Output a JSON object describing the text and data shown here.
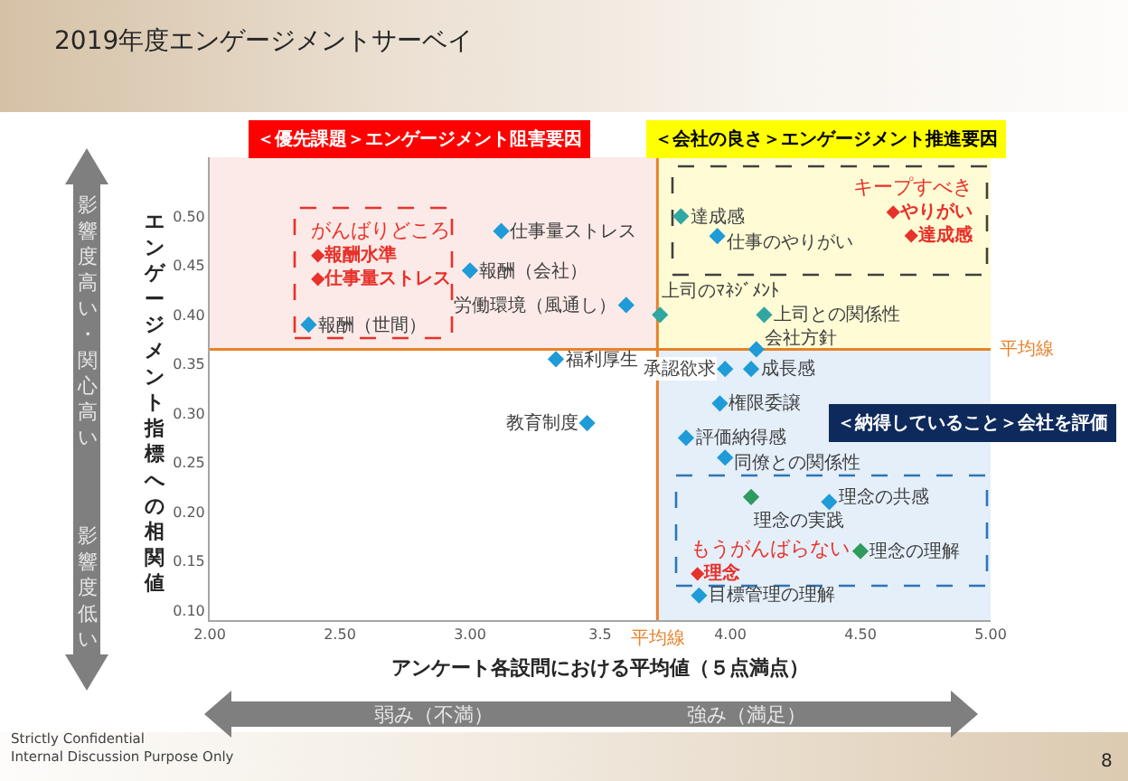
{
  "chart_data": {
    "type": "scatter",
    "title": "2019年度エンゲージメントサーベイ",
    "xlabel": "アンケート各設問における平均値（５点満点）",
    "ylabel": "エンゲージメント指標への相関値",
    "x": [
      3.12,
      3.0,
      2.38,
      3.6,
      3.33,
      3.45,
      3.81,
      3.95,
      3.73,
      4.13,
      4.1,
      3.98,
      4.08,
      3.96,
      3.83,
      3.98,
      4.08,
      4.38,
      4.5,
      3.88
    ],
    "values": [
      0.485,
      0.445,
      0.39,
      0.41,
      0.355,
      0.29,
      0.5,
      0.48,
      0.4,
      0.4,
      0.365,
      0.345,
      0.345,
      0.31,
      0.275,
      0.255,
      0.215,
      0.21,
      0.16,
      0.115
    ],
    "colors": [
      "#1f9bd7",
      "#1f9bd7",
      "#1f9bd7",
      "#1f9bd7",
      "#1f9bd7",
      "#1f9bd7",
      "#31a6a3",
      "#1f9bd7",
      "#31a6a3",
      "#31a6a3",
      "#1f9bd7",
      "#1f9bd7",
      "#1f9bd7",
      "#1f9bd7",
      "#1f9bd7",
      "#1f9bd7",
      "#2e9a5e",
      "#1f9bd7",
      "#2e9a5e",
      "#1f9bd7"
    ],
    "marker": "diamond",
    "xlim": [
      2,
      5
    ],
    "ylim": [
      0.09,
      0.56
    ],
    "xticks": [
      {
        "value": 2,
        "label": "2.00"
      },
      {
        "value": 2.5,
        "label": "2.50"
      },
      {
        "value": 3,
        "label": "3.00"
      },
      3.5,
      {
        "value": 4,
        "label": "4.00"
      },
      {
        "value": 4.5,
        "label": "4.50"
      },
      {
        "value": 5,
        "label": "5.00"
      }
    ],
    "yticks": [
      {
        "value": 0.1,
        "label": "0.10"
      },
      0.15,
      {
        "value": 0.2,
        "label": "0.20"
      },
      0.25,
      {
        "value": 0.3,
        "label": "0.30"
      },
      0.35,
      {
        "value": 0.4,
        "label": "0.40"
      },
      0.45,
      {
        "value": 0.5,
        "label": "0.50"
      }
    ],
    "ref_lines": [
      {
        "axis": "x",
        "value": 3.72,
        "label": "平均線",
        "color": "#e8822a"
      },
      {
        "axis": "y",
        "value": 0.365,
        "label": "平均線",
        "color": "#e8822a"
      }
    ],
    "annotations": [
      "＜優先課題＞エンゲージメント阻害要因",
      "＜会社の良さ＞エンゲージメント推進要因",
      "＜納得していること＞会社を評価",
      "がんばりどころ\n◆報酬水準\n◆仕事量ストレス",
      "キープすべき\n◆やりがい\n◆達成感",
      "もうがんばらない\n◆理念",
      "影響度高い・関心高い",
      "影響度低い",
      "弱み（不満）",
      "強み（満足）",
      "Strictly Confidential\nInternal Discussion Purpose Only",
      "8",
      {
        "text": "仕事量ストレス",
        "x": 3.12,
        "y": 0.485
      },
      {
        "text": "報酬（会社）",
        "x": 3.0,
        "y": 0.445
      },
      {
        "text": "報酬（世間）",
        "x": 2.38,
        "y": 0.39
      },
      {
        "text": "労働環境（風通し）",
        "x": 3.6,
        "y": 0.41
      },
      {
        "text": "福利厚生",
        "x": 3.33,
        "y": 0.355
      },
      {
        "text": "教育制度",
        "x": 3.45,
        "y": 0.29
      },
      {
        "text": "達成感",
        "x": 3.81,
        "y": 0.5
      },
      {
        "text": "仕事のやりがい",
        "x": 3.95,
        "y": 0.48
      },
      {
        "text": "上司のﾏﾈｼﾞﾒﾝﾄ",
        "x": 3.73,
        "y": 0.4
      },
      {
        "text": "上司との関係性",
        "x": 4.13,
        "y": 0.4
      },
      {
        "text": "会社方針",
        "x": 4.1,
        "y": 0.365
      },
      {
        "text": "承認欲求",
        "x": 3.98,
        "y": 0.345
      },
      {
        "text": "成長感",
        "x": 4.08,
        "y": 0.345
      },
      {
        "text": "権限委譲",
        "x": 3.96,
        "y": 0.31
      },
      {
        "text": "評価納得感",
        "x": 3.83,
        "y": 0.275
      },
      {
        "text": "同僚との関係性",
        "x": 3.98,
        "y": 0.255
      },
      {
        "text": "理念の実践",
        "x": 4.08,
        "y": 0.215
      },
      {
        "text": "理念の共感",
        "x": 4.38,
        "y": 0.21
      },
      {
        "text": "理念の理解",
        "x": 4.5,
        "y": 0.16
      },
      {
        "text": "目標管理の理解",
        "x": 3.88,
        "y": 0.115
      }
    ]
  }
}
